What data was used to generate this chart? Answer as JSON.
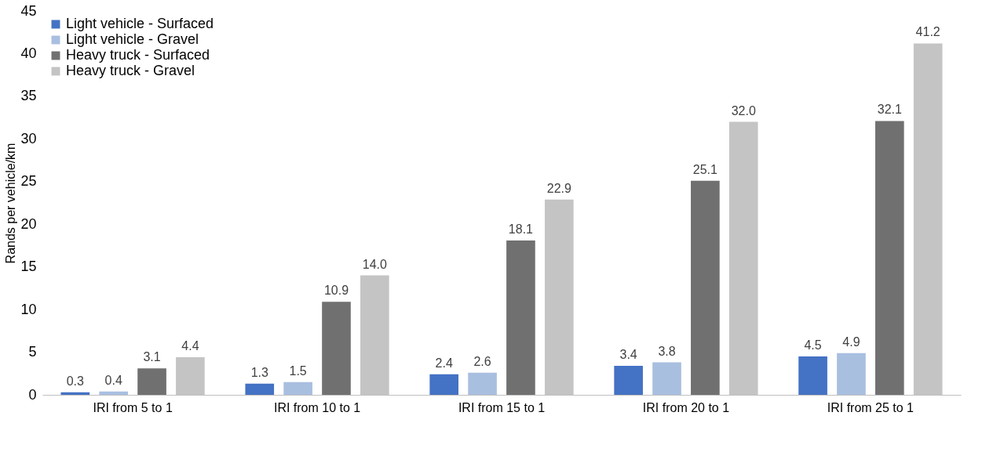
{
  "chart_data": {
    "type": "bar",
    "ylabel": "Rands per vehicle/km",
    "categories": [
      "IRI from 5 to 1",
      "IRI from 10 to 1",
      "IRI from 15 to 1",
      "IRI from 20 to 1",
      "IRI from 25 to 1"
    ],
    "series": [
      {
        "name": "Light vehicle - Surfaced",
        "color": "#4472c4",
        "values": [
          0.3,
          1.3,
          2.4,
          3.4,
          4.5
        ],
        "value_labels": [
          "0.3",
          "1.3",
          "2.4",
          "3.4",
          "4.5"
        ]
      },
      {
        "name": "Light vehicle - Gravel",
        "color": "#a9bfe0",
        "values": [
          0.4,
          1.5,
          2.6,
          3.8,
          4.9
        ],
        "value_labels": [
          "0.4",
          "1.5",
          "2.6",
          "3.8",
          "4.9"
        ]
      },
      {
        "name": "Heavy truck - Surfaced",
        "color": "#707070",
        "values": [
          3.1,
          10.9,
          18.1,
          25.1,
          32.1
        ],
        "value_labels": [
          "3.1",
          "10.9",
          "18.1",
          "25.1",
          "32.1"
        ]
      },
      {
        "name": "Heavy truck - Gravel",
        "color": "#c4c4c4",
        "values": [
          4.4,
          14.0,
          22.9,
          32.0,
          41.2
        ],
        "value_labels": [
          "4.4",
          "14.0",
          "22.9",
          "32.0",
          "41.2"
        ]
      }
    ],
    "ylim": [
      0,
      45
    ],
    "yticks": [
      0,
      5,
      10,
      15,
      20,
      25,
      30,
      35,
      40,
      45
    ],
    "grid": false,
    "legend": "top left"
  }
}
